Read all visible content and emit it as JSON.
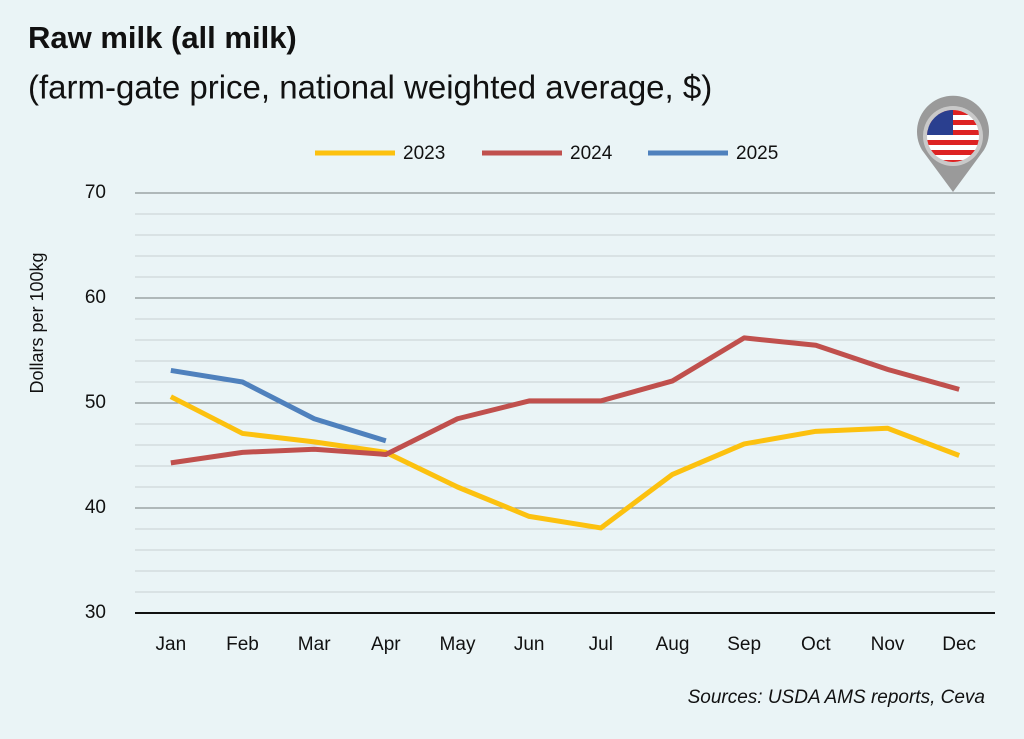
{
  "chart_data": {
    "type": "line",
    "title": "Raw milk (all milk)",
    "subtitle": "(farm-gate price, national weighted average, $)",
    "y_label": "Dollars per 100kg",
    "source": "Sources: USDA AMS reports, Ceva",
    "categories": [
      "Jan",
      "Feb",
      "Mar",
      "Apr",
      "May",
      "Jun",
      "Jul",
      "Aug",
      "Sep",
      "Oct",
      "Nov",
      "Dec"
    ],
    "series": [
      {
        "name": "2023",
        "color": "#fcc10f",
        "values": [
          50.6,
          47.1,
          46.3,
          45.3,
          42.0,
          39.2,
          38.1,
          43.2,
          46.1,
          47.3,
          47.6,
          45.0
        ]
      },
      {
        "name": "2024",
        "color": "#c0504d",
        "values": [
          44.3,
          45.3,
          45.6,
          45.1,
          48.5,
          50.2,
          50.2,
          52.1,
          56.2,
          55.5,
          53.2,
          51.3
        ]
      },
      {
        "name": "2025",
        "color": "#4f81bd",
        "values": [
          53.1,
          52.0,
          48.5,
          46.4,
          null,
          null,
          null,
          null,
          null,
          null,
          null,
          null
        ]
      }
    ],
    "ylim": [
      30,
      70
    ],
    "yticks": [
      30,
      40,
      50,
      60,
      70
    ],
    "minor_yticks": [
      32,
      34,
      36,
      38,
      42,
      44,
      46,
      48,
      52,
      54,
      56,
      58,
      62,
      64,
      66,
      68
    ],
    "grid": true,
    "legend": "top"
  }
}
